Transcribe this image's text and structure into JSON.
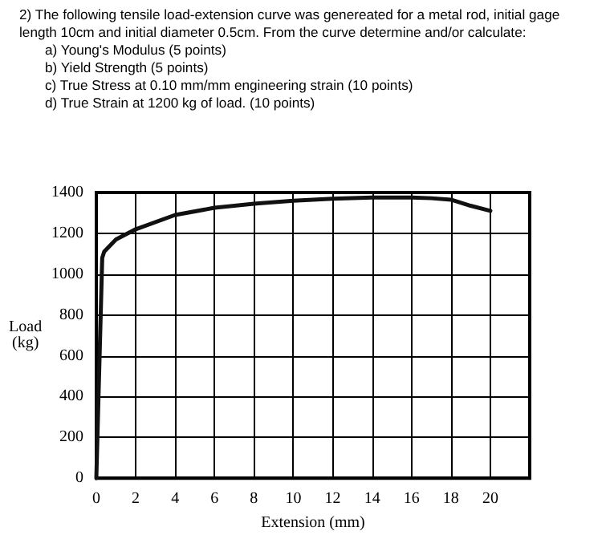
{
  "chart_data": {
    "type": "line",
    "title": "2) The following tensile load-extension curve was genereated for a metal rod, initial gage length 10cm and initial diameter 0.5cm. From the curve determine and/or calculate:",
    "annotations": [
      "a) Young's Modulus (5 points)",
      "b) Yield Strength (5 points)",
      "c) True Stress at 0.10 mm/mm engineering strain (10 points)",
      "d) True Strain at 1200 kg of load. (10 points)"
    ],
    "xlabel": "Extension (mm)",
    "ylabel": "Load (kg)",
    "x": [
      0,
      0.3,
      0.4,
      1,
      2,
      4,
      6,
      8,
      10,
      12,
      14,
      16,
      17,
      18,
      19,
      20
    ],
    "values": [
      0,
      1080,
      1110,
      1170,
      1220,
      1290,
      1325,
      1345,
      1360,
      1370,
      1375,
      1375,
      1372,
      1365,
      1335,
      1310
    ],
    "color": "#111111",
    "marker": "none",
    "line_style": "solid",
    "xlim": [
      0,
      22
    ],
    "xticks": [
      0,
      2,
      4,
      6,
      8,
      10,
      12,
      14,
      16,
      18,
      20
    ],
    "ylim": [
      0,
      1400
    ],
    "yticks": [
      0,
      200,
      400,
      600,
      800,
      1000,
      1200,
      1400
    ],
    "grid": true
  }
}
